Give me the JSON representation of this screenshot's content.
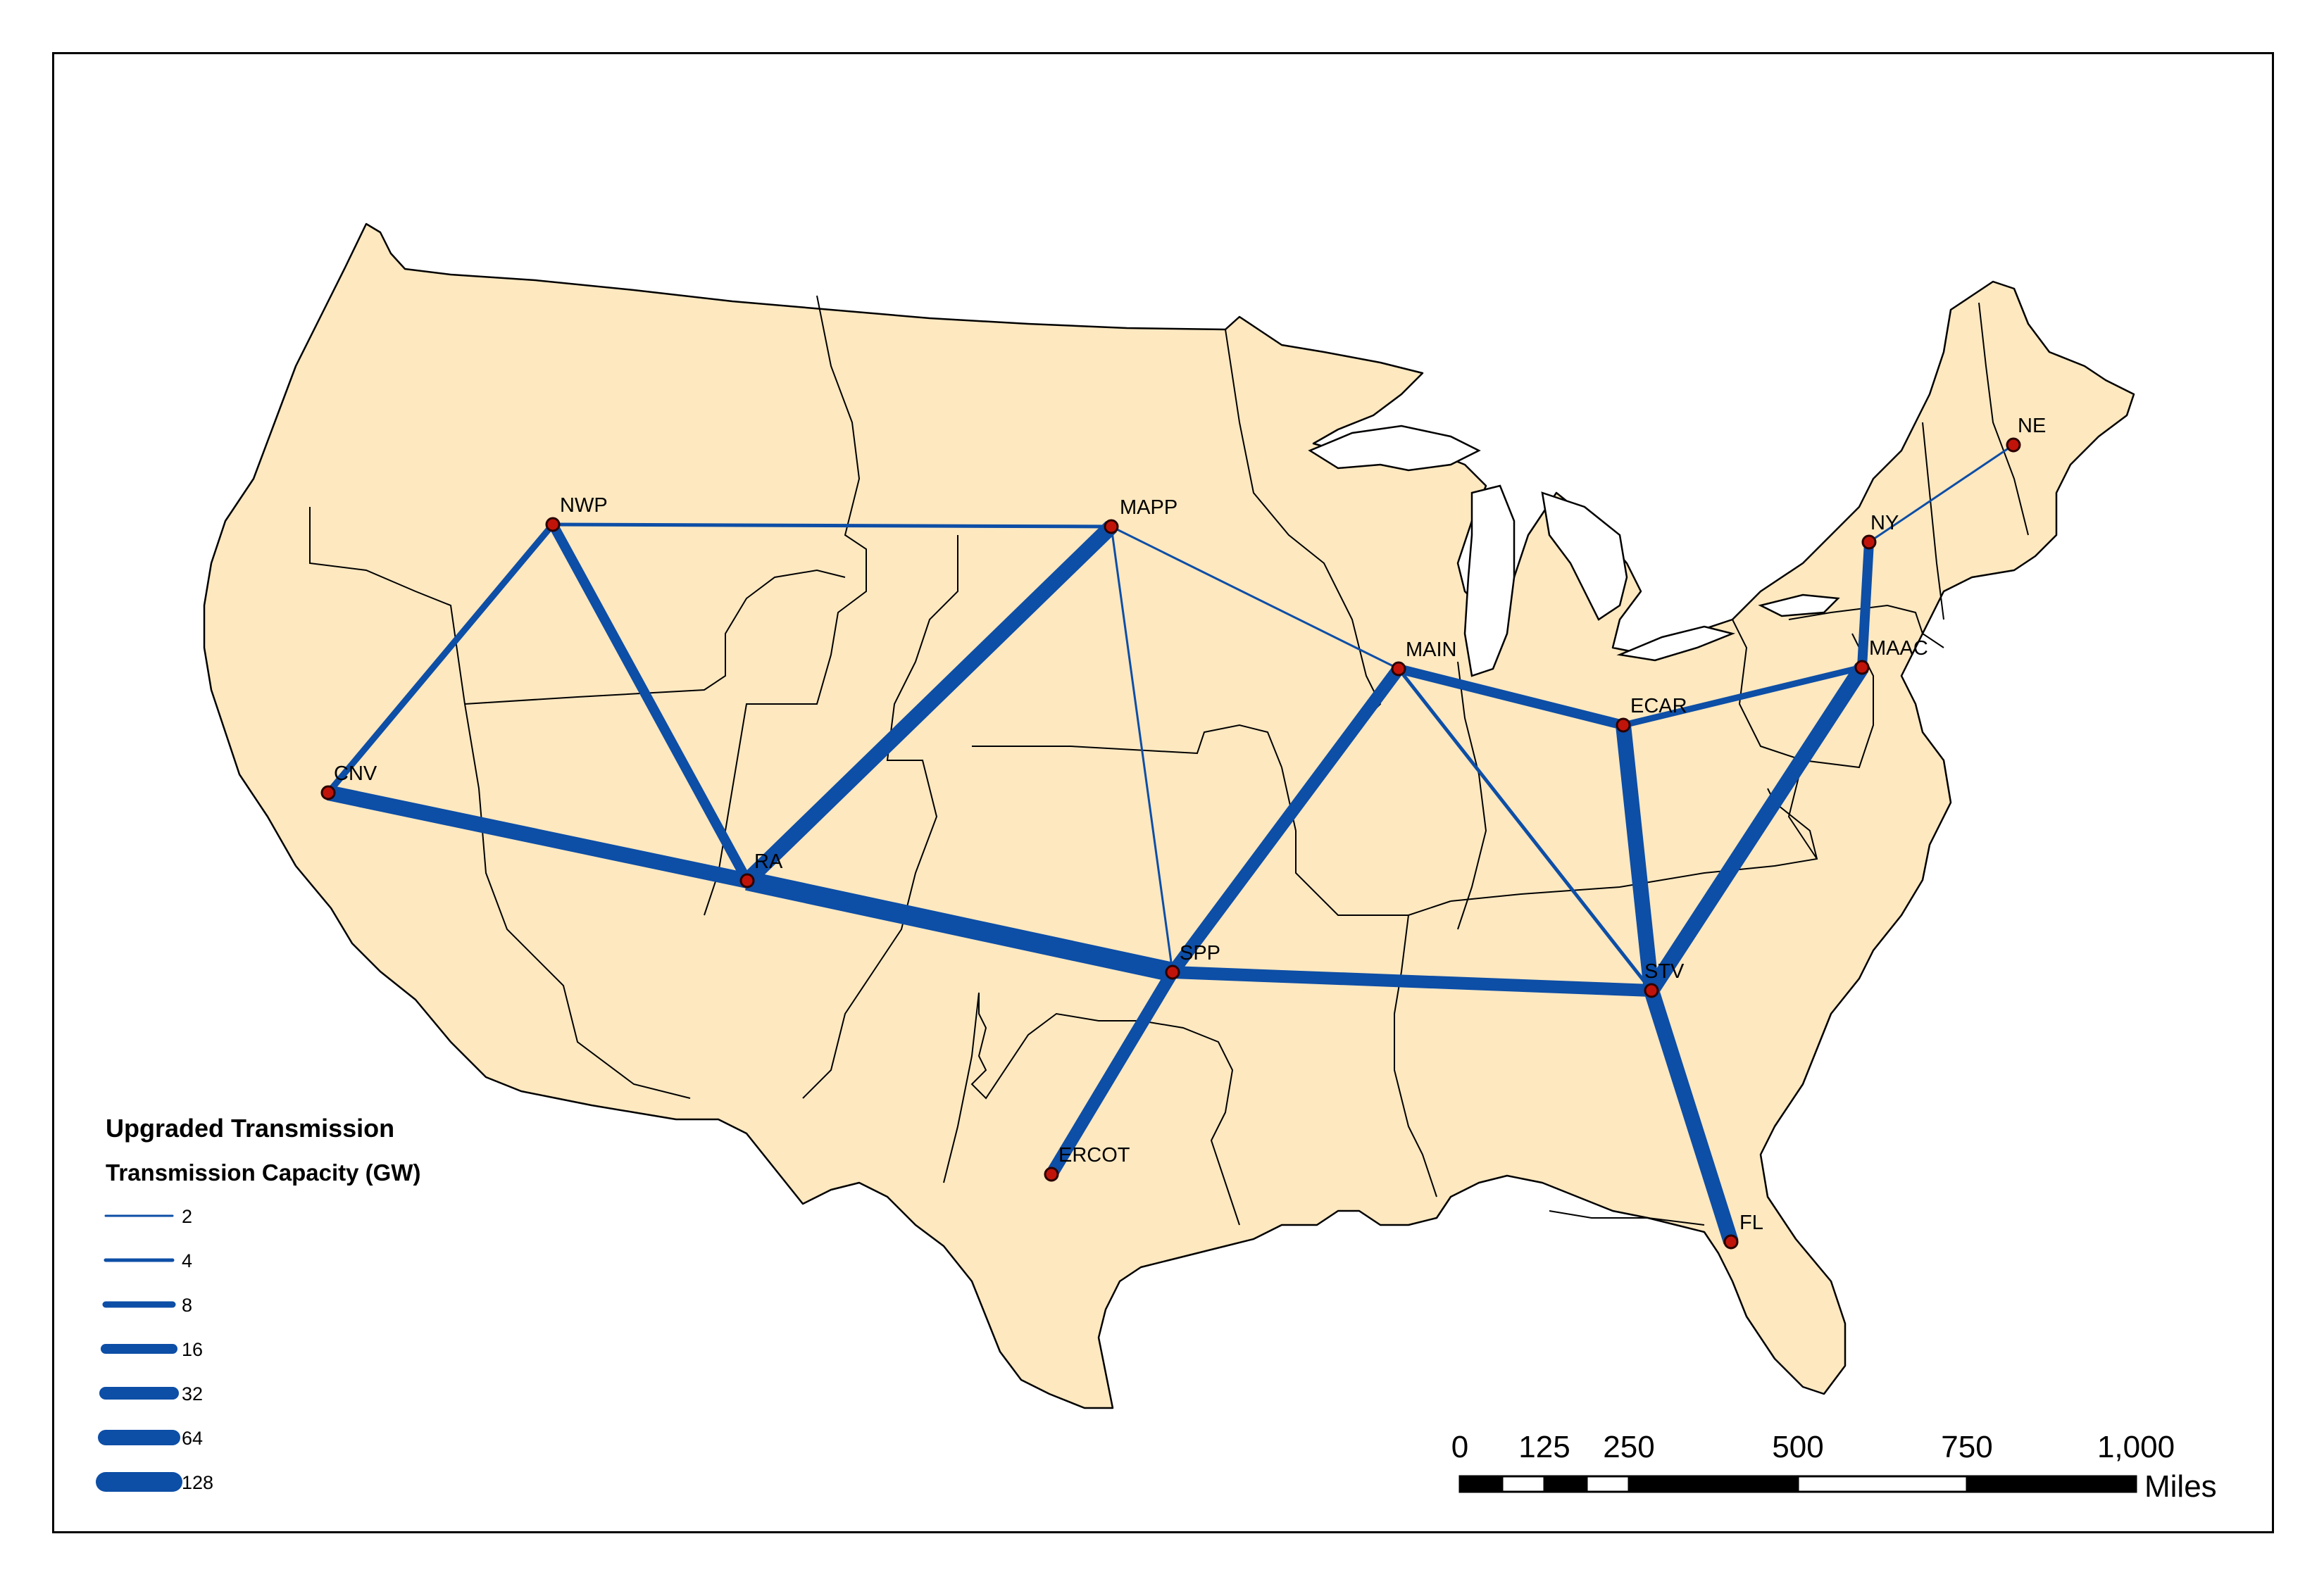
{
  "colors": {
    "land": "#fde8c0",
    "land_stroke": "#000000",
    "line": "#0d4ea6",
    "node_fill": "#c0140a",
    "node_stroke": "#2a0000",
    "water": "#ffffff"
  },
  "nodes": [
    {
      "id": "NWP",
      "label": "NWP"
    },
    {
      "id": "MAPP",
      "label": "MAPP"
    },
    {
      "id": "CNV",
      "label": "CNV"
    },
    {
      "id": "RA",
      "label": "RA"
    },
    {
      "id": "SPP",
      "label": "SPP"
    },
    {
      "id": "ERCOT",
      "label": "ERCOT"
    },
    {
      "id": "MAIN",
      "label": "MAIN"
    },
    {
      "id": "ECAR",
      "label": "ECAR"
    },
    {
      "id": "STV",
      "label": "STV"
    },
    {
      "id": "FL",
      "label": "FL"
    },
    {
      "id": "MAAC",
      "label": "MAAC"
    },
    {
      "id": "NY",
      "label": "NY"
    },
    {
      "id": "NE",
      "label": "NE"
    }
  ],
  "links": [
    {
      "from": "NWP",
      "to": "MAPP",
      "capacity_gw": 4
    },
    {
      "from": "NWP",
      "to": "CNV",
      "capacity_gw": 8
    },
    {
      "from": "NWP",
      "to": "RA",
      "capacity_gw": 16
    },
    {
      "from": "MAPP",
      "to": "RA",
      "capacity_gw": 64
    },
    {
      "from": "MAPP",
      "to": "SPP",
      "capacity_gw": 2
    },
    {
      "from": "MAPP",
      "to": "MAIN",
      "capacity_gw": 2
    },
    {
      "from": "CNV",
      "to": "RA",
      "capacity_gw": 64
    },
    {
      "from": "RA",
      "to": "SPP",
      "capacity_gw": 128
    },
    {
      "from": "SPP",
      "to": "STV",
      "capacity_gw": 32
    },
    {
      "from": "SPP",
      "to": "ERCOT",
      "capacity_gw": 32
    },
    {
      "from": "SPP",
      "to": "MAIN",
      "capacity_gw": 32
    },
    {
      "from": "MAIN",
      "to": "ECAR",
      "capacity_gw": 16
    },
    {
      "from": "MAIN",
      "to": "STV",
      "capacity_gw": 4
    },
    {
      "from": "ECAR",
      "to": "MAAC",
      "capacity_gw": 8
    },
    {
      "from": "ECAR",
      "to": "STV",
      "capacity_gw": 64
    },
    {
      "from": "STV",
      "to": "MAAC",
      "capacity_gw": 64
    },
    {
      "from": "STV",
      "to": "FL",
      "capacity_gw": 64
    },
    {
      "from": "MAAC",
      "to": "NY",
      "capacity_gw": 16
    },
    {
      "from": "NY",
      "to": "NE",
      "capacity_gw": 2
    }
  ],
  "legend": {
    "title": "Upgraded Transmission",
    "subtitle": "Transmission Capacity (GW)",
    "items": [
      {
        "label": "2",
        "capacity_gw": 2
      },
      {
        "label": "4",
        "capacity_gw": 4
      },
      {
        "label": "8",
        "capacity_gw": 8
      },
      {
        "label": "16",
        "capacity_gw": 16
      },
      {
        "label": "32",
        "capacity_gw": 32
      },
      {
        "label": "64",
        "capacity_gw": 64
      },
      {
        "label": "128",
        "capacity_gw": 128
      }
    ]
  },
  "scale_bar": {
    "ticks": [
      "0",
      "125",
      "250",
      "500",
      "750",
      "1,000"
    ],
    "unit": "Miles"
  }
}
